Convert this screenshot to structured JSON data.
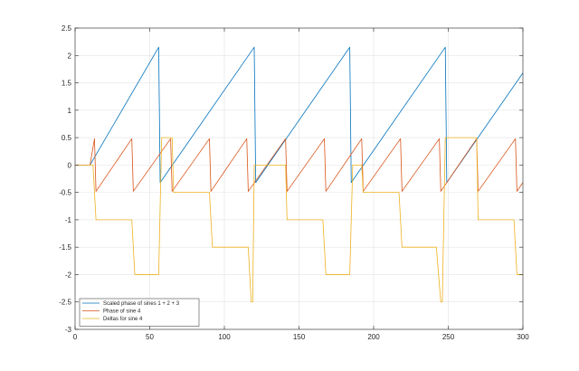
{
  "chart_data": {
    "type": "line",
    "title": "",
    "xlabel": "",
    "ylabel": "",
    "xlim": [
      0,
      300
    ],
    "ylim": [
      -3,
      2.5
    ],
    "xticks": [
      0,
      50,
      100,
      150,
      200,
      250,
      300
    ],
    "yticks": [
      -3,
      -2.5,
      -2,
      -1.5,
      -1,
      -0.5,
      0,
      0.5,
      1,
      1.5,
      2,
      2.5
    ],
    "xtick_labels": [
      "0",
      "50",
      "100",
      "150",
      "200",
      "250",
      "300"
    ],
    "ytick_labels": [
      "-3",
      "-2.5",
      "-2",
      "-1.5",
      "-1",
      "-0.5",
      "0",
      "0.5",
      "1",
      "1.5",
      "2",
      "2.5"
    ],
    "grid": true,
    "legend_position": "bottom-left",
    "series": [
      {
        "name": "Scaled phase of sines 1 + 2 + 3",
        "color": "#0072BD",
        "points": [
          [
            0,
            0
          ],
          [
            10,
            0
          ],
          [
            56,
            2.15
          ],
          [
            57,
            -0.32
          ],
          [
            120,
            2.15
          ],
          [
            121,
            -0.32
          ],
          [
            184,
            2.15
          ],
          [
            185,
            -0.32
          ],
          [
            248,
            2.15
          ],
          [
            249,
            -0.32
          ],
          [
            300,
            1.68
          ]
        ]
      },
      {
        "name": "Phase of sine 4",
        "color": "#D95319",
        "points": [
          [
            0,
            0
          ],
          [
            10,
            0
          ],
          [
            13,
            0.48
          ],
          [
            14,
            -0.48
          ],
          [
            38,
            0.48
          ],
          [
            39,
            -0.48
          ],
          [
            64,
            0.48
          ],
          [
            65,
            -0.48
          ],
          [
            90,
            0.48
          ],
          [
            91,
            -0.48
          ],
          [
            115,
            0.48
          ],
          [
            116,
            -0.48
          ],
          [
            141,
            0.48
          ],
          [
            142,
            -0.48
          ],
          [
            167,
            0.48
          ],
          [
            168,
            -0.48
          ],
          [
            192,
            0.48
          ],
          [
            193,
            -0.48
          ],
          [
            218,
            0.48
          ],
          [
            219,
            -0.48
          ],
          [
            244,
            0.48
          ],
          [
            245,
            -0.48
          ],
          [
            269,
            0.48
          ],
          [
            270,
            -0.48
          ],
          [
            295,
            0.48
          ],
          [
            296,
            -0.48
          ],
          [
            300,
            -0.32
          ]
        ]
      },
      {
        "name": "Deltas for sine 4",
        "color": "#EDB120",
        "points": [
          [
            0,
            0
          ],
          [
            12,
            0
          ],
          [
            13,
            -0.5
          ],
          [
            14,
            -1
          ],
          [
            38,
            -1
          ],
          [
            40,
            -2
          ],
          [
            56,
            -2
          ],
          [
            58,
            0.5
          ],
          [
            65,
            0.5
          ],
          [
            66,
            -0.5
          ],
          [
            90,
            -0.5
          ],
          [
            92,
            -1.5
          ],
          [
            116,
            -1.5
          ],
          [
            118,
            -2.5
          ],
          [
            119,
            -2.5
          ],
          [
            120,
            0
          ],
          [
            141,
            0
          ],
          [
            142,
            -1
          ],
          [
            166,
            -1
          ],
          [
            168,
            -2
          ],
          [
            184,
            -2
          ],
          [
            186,
            0
          ],
          [
            192,
            0
          ],
          [
            193,
            -0.5
          ],
          [
            217,
            -0.5
          ],
          [
            219,
            -1.5
          ],
          [
            242,
            -1.5
          ],
          [
            245,
            -2.5
          ],
          [
            246,
            -2.5
          ],
          [
            248,
            0.5
          ],
          [
            269,
            0.5
          ],
          [
            270,
            -1
          ],
          [
            294,
            -1
          ],
          [
            296,
            -2
          ],
          [
            300,
            -2
          ]
        ]
      }
    ]
  }
}
